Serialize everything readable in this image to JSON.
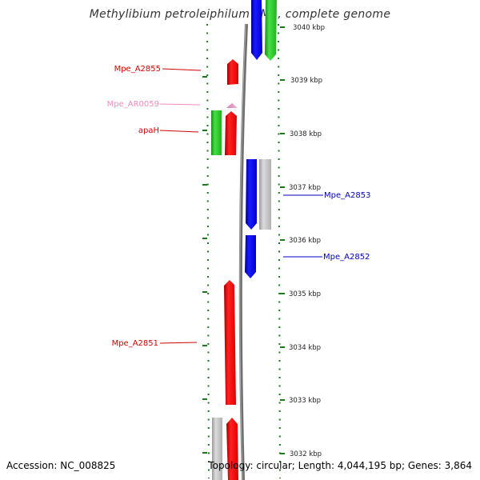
{
  "title": "Methylibium petroleiphilum PM1, complete genome",
  "footer": {
    "accession": "Accession: NC_008825",
    "topology": "Topology: circular; Length: 4,044,195 bp; Genes: 3,864"
  },
  "kbp_labels": [
    "3040 kbp",
    "3039 kbp",
    "3038 kbp",
    "3037 kbp",
    "3036 kbp",
    "3035 kbp",
    "3034 kbp",
    "3033 kbp",
    "3032 kbp"
  ],
  "gene_labels": [
    {
      "text": "Mpe_A2855",
      "color": "#d40000"
    },
    {
      "text": "Mpe_AR0059",
      "color": "#f08cc0"
    },
    {
      "text": "apaH",
      "color": "#d40000"
    },
    {
      "text": "Mpe_A2853",
      "color": "#0000c0"
    },
    {
      "text": "Mpe_A2852",
      "color": "#0000c0"
    },
    {
      "text": "Mpe_A2851",
      "color": "#d40000"
    }
  ],
  "colors": {
    "red": "#ff1010",
    "blue": "#1010e0",
    "green": "#30d030",
    "gray": "#c0c0c0",
    "pink": "#f0a0d0",
    "tick": "#1a7a1a",
    "backbone": "#7a7a7a"
  }
}
